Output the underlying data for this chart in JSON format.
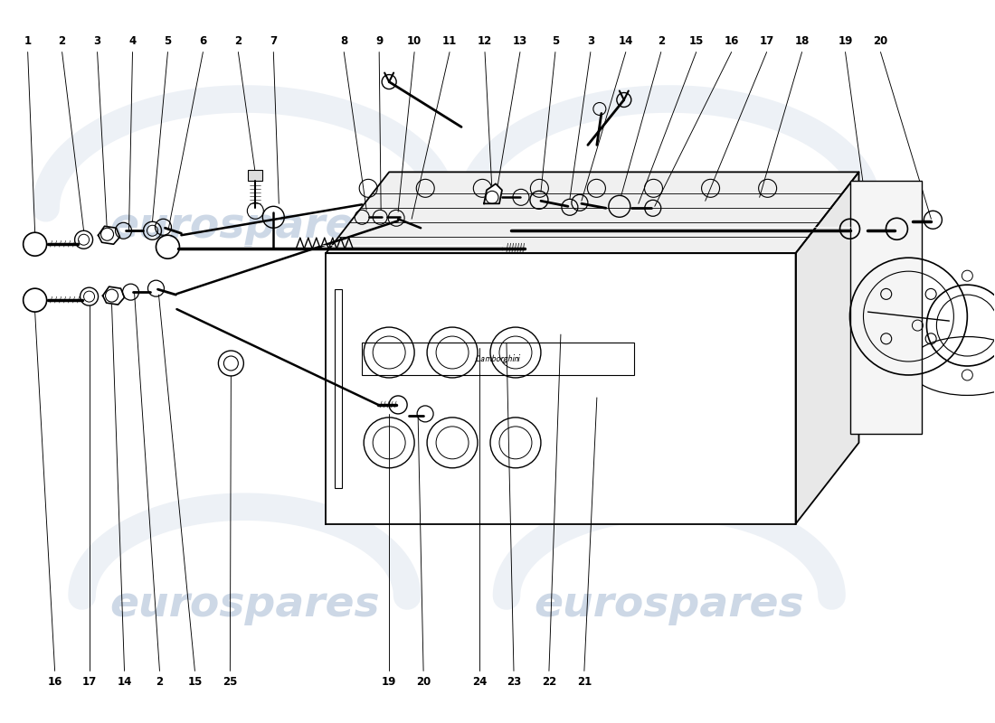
{
  "bg_color": "#ffffff",
  "line_color": "#000000",
  "watermark_color": "#b8c8dc",
  "watermark_text": "eurospares",
  "top_labels": [
    [
      "1",
      0.03
    ],
    [
      "2",
      0.068
    ],
    [
      "3",
      0.107
    ],
    [
      "4",
      0.146
    ],
    [
      "5",
      0.185
    ],
    [
      "6",
      0.224
    ],
    [
      "2",
      0.263
    ],
    [
      "7",
      0.302
    ],
    [
      "8",
      0.38
    ],
    [
      "9",
      0.419
    ],
    [
      "10",
      0.458
    ],
    [
      "11",
      0.497
    ],
    [
      "12",
      0.536
    ],
    [
      "13",
      0.575
    ],
    [
      "5",
      0.614
    ],
    [
      "3",
      0.653
    ],
    [
      "14",
      0.692
    ],
    [
      "2",
      0.731
    ],
    [
      "15",
      0.77
    ],
    [
      "16",
      0.809
    ],
    [
      "17",
      0.848
    ],
    [
      "18",
      0.887
    ],
    [
      "19",
      0.935
    ],
    [
      "20",
      0.974
    ]
  ],
  "bottom_labels": [
    [
      "16",
      0.06
    ],
    [
      "17",
      0.098
    ],
    [
      "14",
      0.137
    ],
    [
      "2",
      0.176
    ],
    [
      "15",
      0.215
    ],
    [
      "25",
      0.254
    ],
    [
      "19",
      0.43
    ],
    [
      "20",
      0.468
    ],
    [
      "24",
      0.53
    ],
    [
      "23",
      0.568
    ],
    [
      "22",
      0.607
    ],
    [
      "21",
      0.646
    ]
  ]
}
